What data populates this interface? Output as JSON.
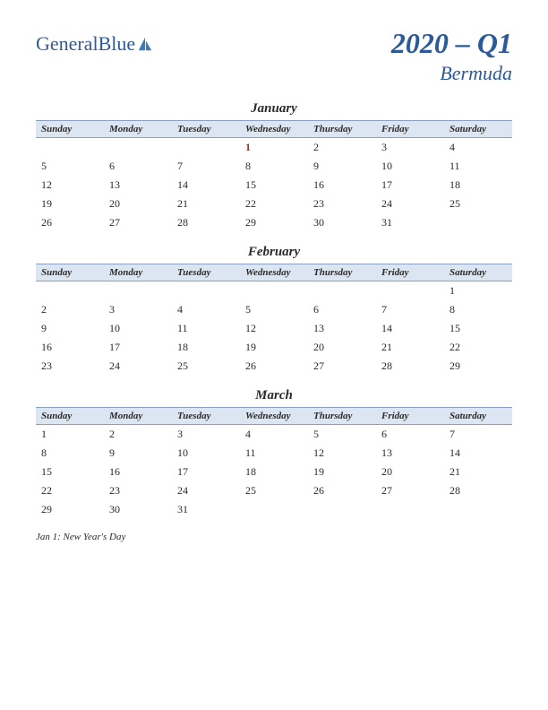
{
  "logo": {
    "text1": "General",
    "text2": "Blue"
  },
  "title": {
    "quarter": "2020 – Q1",
    "region": "Bermuda"
  },
  "dayHeaders": [
    "Sunday",
    "Monday",
    "Tuesday",
    "Wednesday",
    "Thursday",
    "Friday",
    "Saturday"
  ],
  "holidayColor": "#c02020",
  "headerBg": "#dce6f2",
  "months": [
    {
      "name": "January",
      "weeks": [
        [
          "",
          "",
          "",
          "1",
          "2",
          "3",
          "4"
        ],
        [
          "5",
          "6",
          "7",
          "8",
          "9",
          "10",
          "11"
        ],
        [
          "12",
          "13",
          "14",
          "15",
          "16",
          "17",
          "18"
        ],
        [
          "19",
          "20",
          "21",
          "22",
          "23",
          "24",
          "25"
        ],
        [
          "26",
          "27",
          "28",
          "29",
          "30",
          "31",
          ""
        ]
      ],
      "holidays": [
        [
          0,
          3
        ]
      ]
    },
    {
      "name": "February",
      "weeks": [
        [
          "",
          "",
          "",
          "",
          "",
          "",
          "1"
        ],
        [
          "2",
          "3",
          "4",
          "5",
          "6",
          "7",
          "8"
        ],
        [
          "9",
          "10",
          "11",
          "12",
          "13",
          "14",
          "15"
        ],
        [
          "16",
          "17",
          "18",
          "19",
          "20",
          "21",
          "22"
        ],
        [
          "23",
          "24",
          "25",
          "26",
          "27",
          "28",
          "29"
        ]
      ],
      "holidays": []
    },
    {
      "name": "March",
      "weeks": [
        [
          "1",
          "2",
          "3",
          "4",
          "5",
          "6",
          "7"
        ],
        [
          "8",
          "9",
          "10",
          "11",
          "12",
          "13",
          "14"
        ],
        [
          "15",
          "16",
          "17",
          "18",
          "19",
          "20",
          "21"
        ],
        [
          "22",
          "23",
          "24",
          "25",
          "26",
          "27",
          "28"
        ],
        [
          "29",
          "30",
          "31",
          "",
          "",
          "",
          ""
        ]
      ],
      "holidays": []
    }
  ],
  "notes": [
    "Jan 1: New Year's Day"
  ]
}
